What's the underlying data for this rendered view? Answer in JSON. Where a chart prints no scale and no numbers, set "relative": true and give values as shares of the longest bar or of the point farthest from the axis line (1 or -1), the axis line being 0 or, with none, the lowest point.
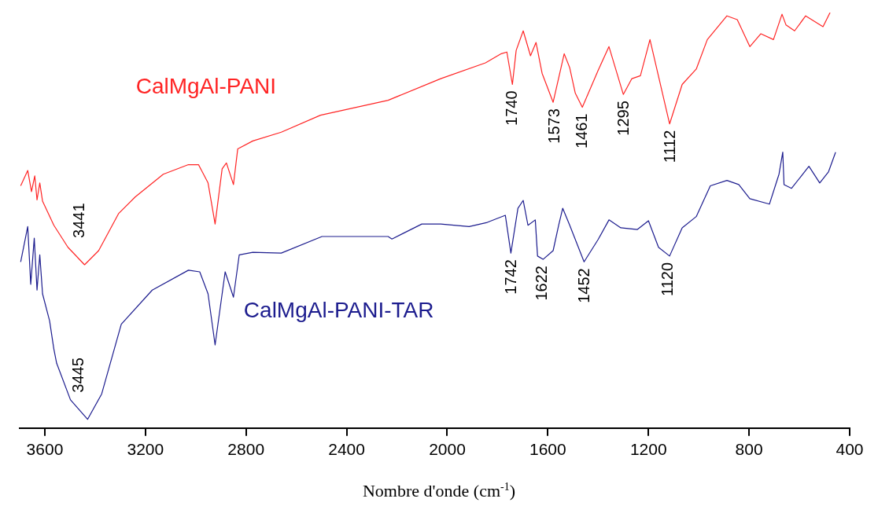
{
  "chart_data": {
    "type": "line",
    "relative": true,
    "marker": "none",
    "line_style": "solid",
    "grid": false,
    "legend": false,
    "xlabel": "Nombre d'onde (cm$^{-1}$)",
    "xlim": [
      3700,
      400
    ],
    "xticks": [
      3600,
      3200,
      2800,
      2400,
      2000,
      1600,
      1200,
      800,
      400
    ],
    "series": [
      {
        "name": "CalMgAl-PANI",
        "color": "#ff2424",
        "x": [
          3696,
          3668,
          3653,
          3640,
          3631,
          3620,
          3609,
          3564,
          3508,
          3442,
          3386,
          3307,
          3241,
          3129,
          3029,
          2989,
          2951,
          2923,
          2895,
          2878,
          2850,
          2833,
          2773,
          2660,
          2504,
          2235,
          2026,
          1848,
          1785,
          1763,
          1741,
          1726,
          1698,
          1669,
          1647,
          1623,
          1579,
          1535,
          1513,
          1491,
          1463,
          1400,
          1357,
          1300,
          1266,
          1232,
          1194,
          1116,
          1066,
          1010,
          966,
          888,
          847,
          797,
          753,
          703,
          669,
          653,
          619,
          575,
          506,
          478
        ],
        "values": [
          0.583,
          0.62,
          0.569,
          0.607,
          0.549,
          0.59,
          0.546,
          0.488,
          0.435,
          0.393,
          0.427,
          0.516,
          0.556,
          0.611,
          0.634,
          0.634,
          0.59,
          0.491,
          0.624,
          0.638,
          0.586,
          0.672,
          0.691,
          0.712,
          0.753,
          0.789,
          0.841,
          0.879,
          0.901,
          0.905,
          0.827,
          0.909,
          0.956,
          0.896,
          0.928,
          0.854,
          0.784,
          0.901,
          0.867,
          0.806,
          0.772,
          0.861,
          0.918,
          0.803,
          0.841,
          0.848,
          0.935,
          0.732,
          0.827,
          0.864,
          0.935,
          0.992,
          0.983,
          0.918,
          0.949,
          0.935,
          0.996,
          0.97,
          0.956,
          0.992,
          0.966,
          1
        ]
      },
      {
        "name": "CalMgAl-PANI-TAR",
        "color": "#1c1c8e",
        "x": [
          3696,
          3668,
          3656,
          3642,
          3631,
          3620,
          3609,
          3581,
          3564,
          3553,
          3498,
          3430,
          3374,
          3296,
          3173,
          3029,
          2984,
          2951,
          2923,
          2883,
          2850,
          2827,
          2773,
          2660,
          2498,
          2235,
          2220,
          2101,
          2026,
          1913,
          1841,
          1769,
          1747,
          1719,
          1698,
          1679,
          1650,
          1641,
          1619,
          1579,
          1557,
          1541,
          1513,
          1456,
          1400,
          1357,
          1310,
          1244,
          1200,
          1160,
          1116,
          1066,
          1010,
          954,
          888,
          841,
          797,
          719,
          681,
          666,
          661,
          631,
          562,
          519,
          484,
          456
        ],
        "values": [
          0.4,
          0.485,
          0.346,
          0.457,
          0.332,
          0.417,
          0.323,
          0.258,
          0.19,
          0.156,
          0.068,
          0.021,
          0.082,
          0.25,
          0.332,
          0.38,
          0.376,
          0.323,
          0.2,
          0.376,
          0.315,
          0.417,
          0.423,
          0.421,
          0.461,
          0.461,
          0.455,
          0.491,
          0.491,
          0.485,
          0.495,
          0.512,
          0.421,
          0.529,
          0.548,
          0.488,
          0.501,
          0.414,
          0.406,
          0.427,
          0.488,
          0.529,
          0.488,
          0.4,
          0.454,
          0.501,
          0.482,
          0.478,
          0.499,
          0.435,
          0.414,
          0.482,
          0.509,
          0.583,
          0.596,
          0.586,
          0.552,
          0.539,
          0.611,
          0.664,
          0.586,
          0.577,
          0.63,
          0.59,
          0.617,
          0.664
        ]
      }
    ],
    "annotations": [
      {
        "text": "3441",
        "x": 3441,
        "y": 0.393
      },
      {
        "text": "1740",
        "x": 1740,
        "y": 0.827
      },
      {
        "text": "1573",
        "x": 1573,
        "y": 0.784
      },
      {
        "text": "1461",
        "x": 1461,
        "y": 0.772
      },
      {
        "text": "1295",
        "x": 1295,
        "y": 0.803
      },
      {
        "text": "1112",
        "x": 1112,
        "y": 0.732
      },
      {
        "text": "3445",
        "x": 3445,
        "y": 0.021
      },
      {
        "text": "1742",
        "x": 1742,
        "y": 0.421
      },
      {
        "text": "1622",
        "x": 1622,
        "y": 0.406
      },
      {
        "text": "1452",
        "x": 1452,
        "y": 0.4
      },
      {
        "text": "1120",
        "x": 1120,
        "y": 0.414
      }
    ]
  }
}
